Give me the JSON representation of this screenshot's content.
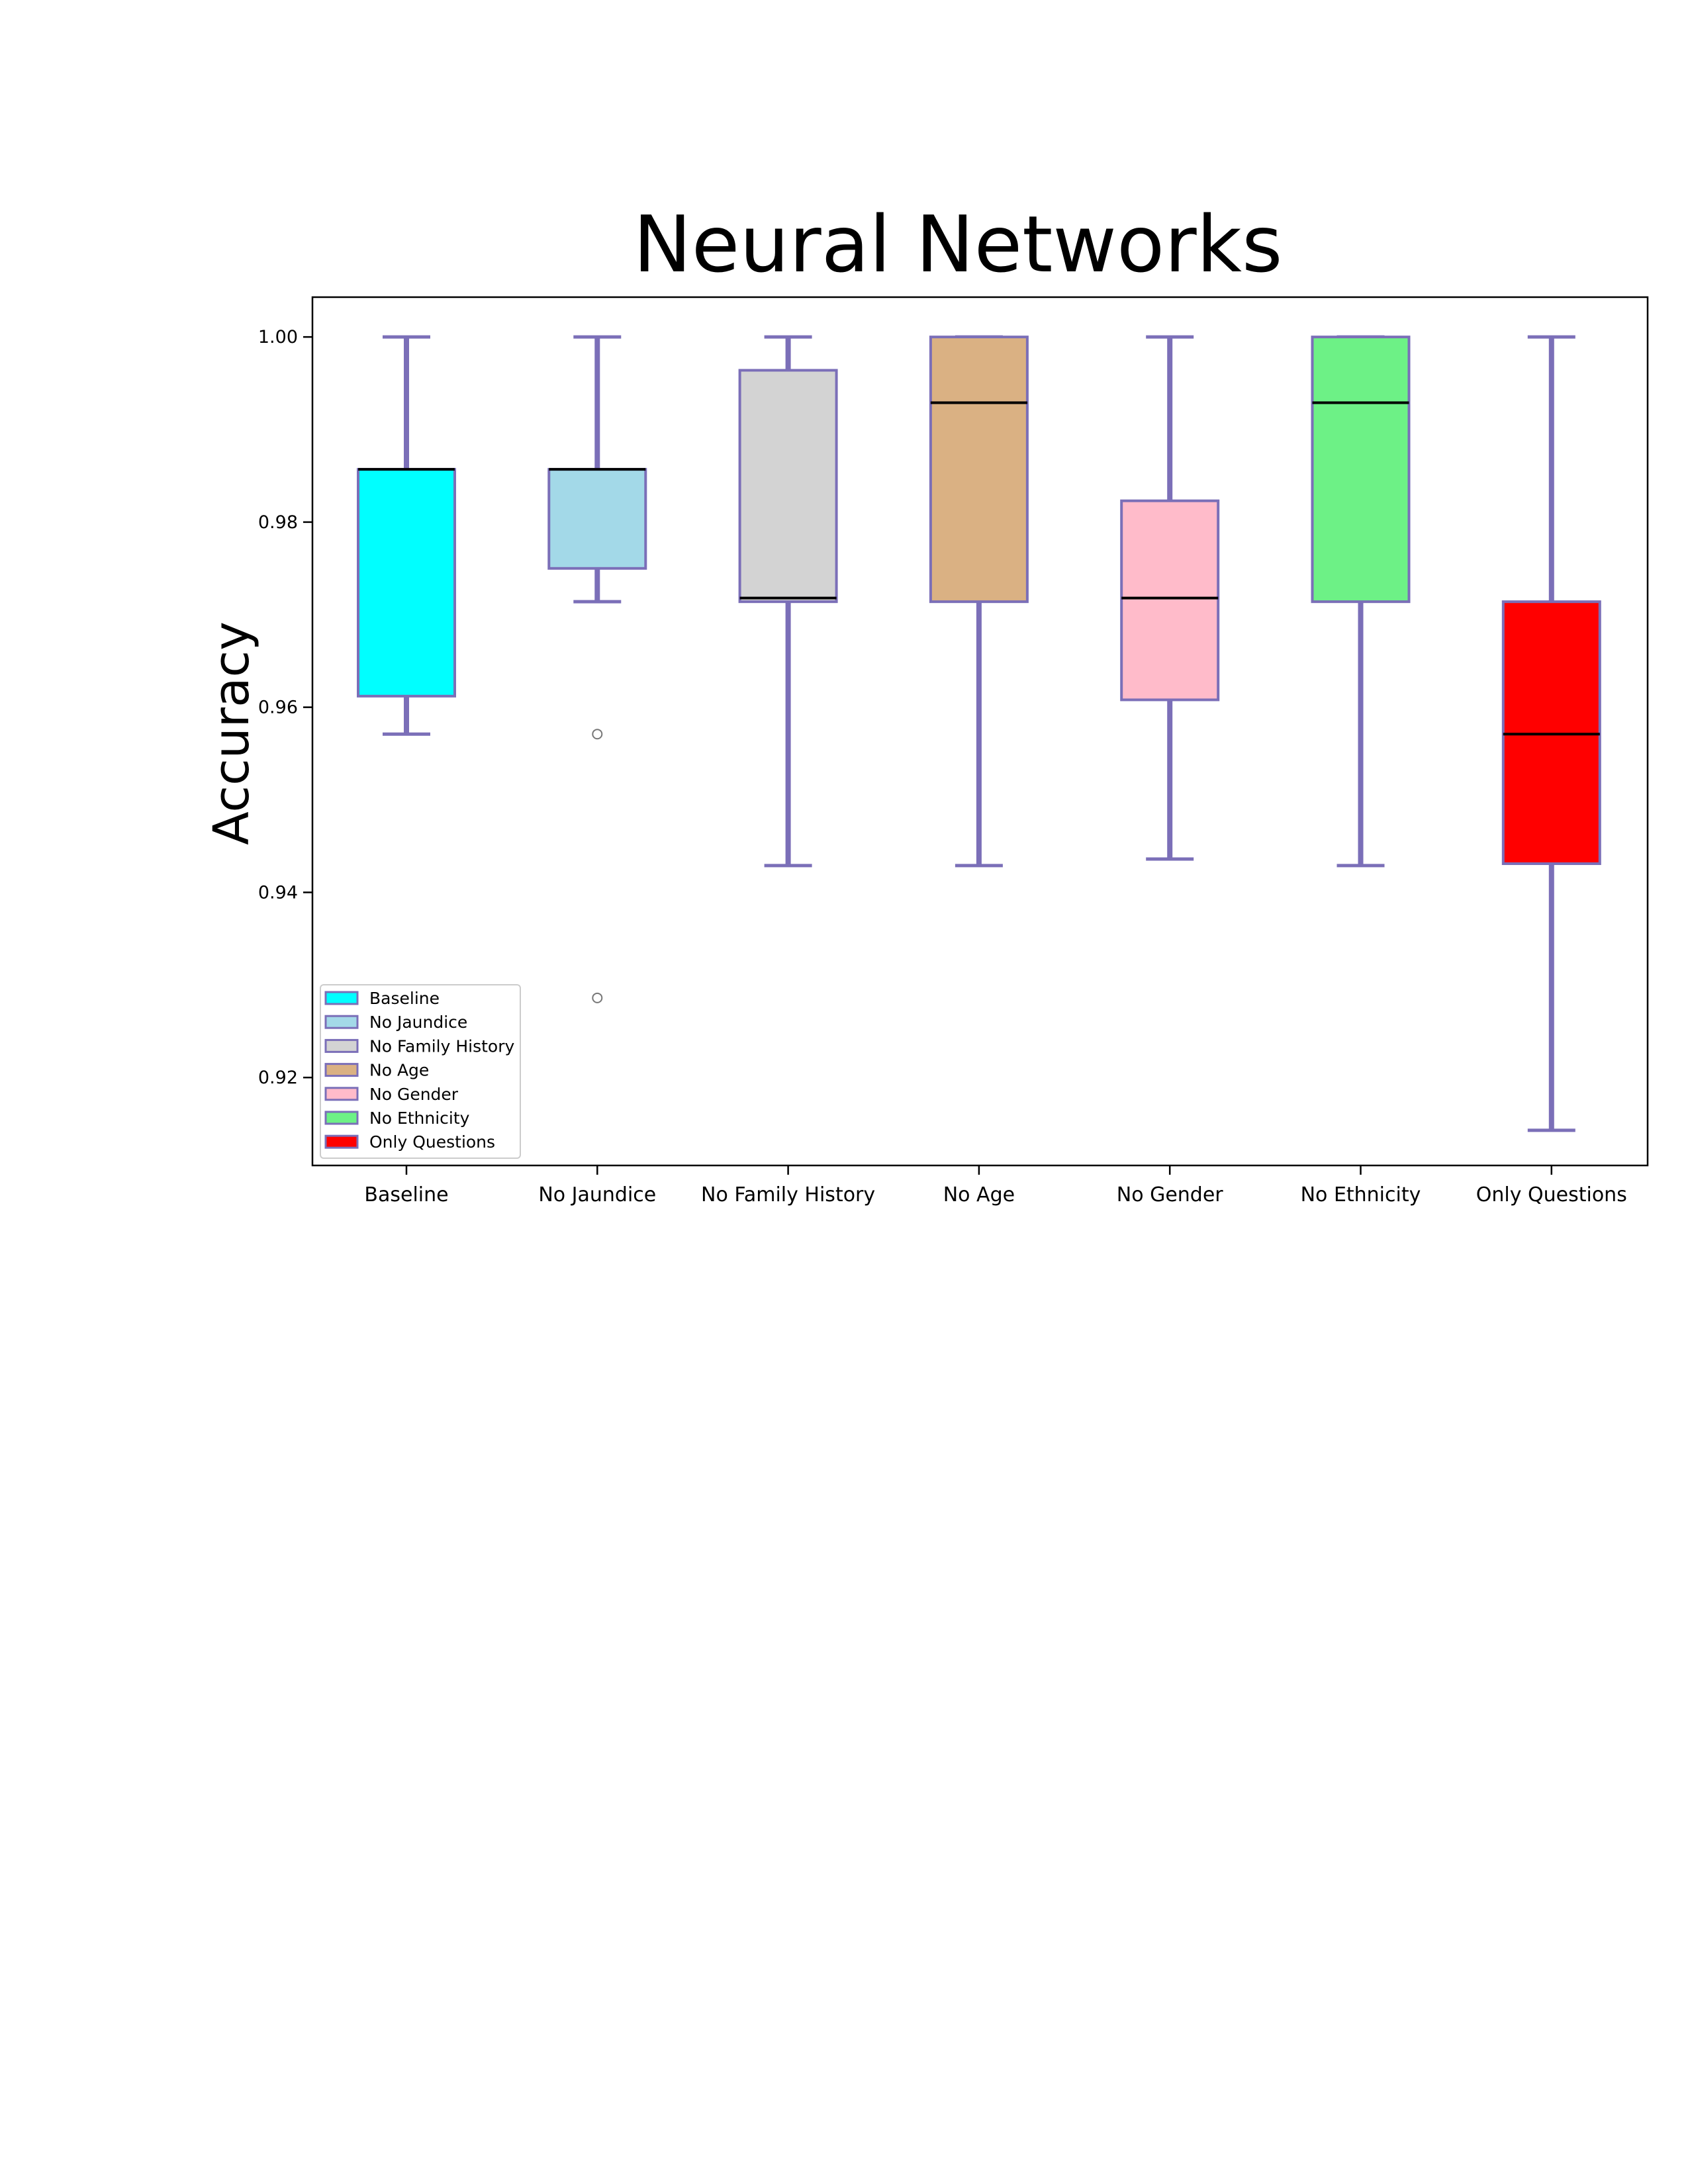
{
  "chart_data": {
    "type": "box",
    "title": "Neural Networks",
    "ylabel": "Accuracy",
    "xlabel": "",
    "ylim": [
      0.9105,
      1.0043
    ],
    "yticks": [
      0.92,
      0.94,
      0.96,
      0.98,
      1.0
    ],
    "ytick_labels": [
      "0.92",
      "0.94",
      "0.96",
      "0.98",
      "1.00"
    ],
    "grid": false,
    "legend_position": "lower-left",
    "whisker_color": "#7b6fb8",
    "median_color": "#000000",
    "categories": [
      "Baseline",
      "No Jaundice",
      "No Family History",
      "No Age",
      "No Gender",
      "No Ethnicity",
      "Only Questions"
    ],
    "boxes": [
      {
        "name": "Baseline",
        "color": "#00ffff",
        "whislo": 0.9571,
        "q1": 0.9612,
        "med": 0.9857,
        "q3": 0.9857,
        "whishi": 1.0,
        "fliers": []
      },
      {
        "name": "No Jaundice",
        "color": "#a3d9e8",
        "whislo": 0.9714,
        "q1": 0.975,
        "med": 0.9857,
        "q3": 0.9857,
        "whishi": 1.0,
        "fliers": [
          0.9571,
          0.9286
        ]
      },
      {
        "name": "No Family History",
        "color": "#d3d3d3",
        "whislo": 0.9429,
        "q1": 0.9714,
        "med": 0.9718,
        "q3": 0.9964,
        "whishi": 1.0,
        "fliers": []
      },
      {
        "name": "No Age",
        "color": "#dab183",
        "whislo": 0.9429,
        "q1": 0.9714,
        "med": 0.9929,
        "q3": 1.0,
        "whishi": 1.0,
        "fliers": []
      },
      {
        "name": "No Gender",
        "color": "#ffbbca",
        "whislo": 0.9436,
        "q1": 0.9608,
        "med": 0.9718,
        "q3": 0.9823,
        "whishi": 1.0,
        "fliers": []
      },
      {
        "name": "No Ethnicity",
        "color": "#6df186",
        "whislo": 0.9429,
        "q1": 0.9714,
        "med": 0.9929,
        "q3": 1.0,
        "whishi": 1.0,
        "fliers": []
      },
      {
        "name": "Only Questions",
        "color": "#ff0000",
        "whislo": 0.9143,
        "q1": 0.9431,
        "med": 0.9571,
        "q3": 0.9714,
        "whishi": 1.0,
        "fliers": []
      }
    ]
  }
}
